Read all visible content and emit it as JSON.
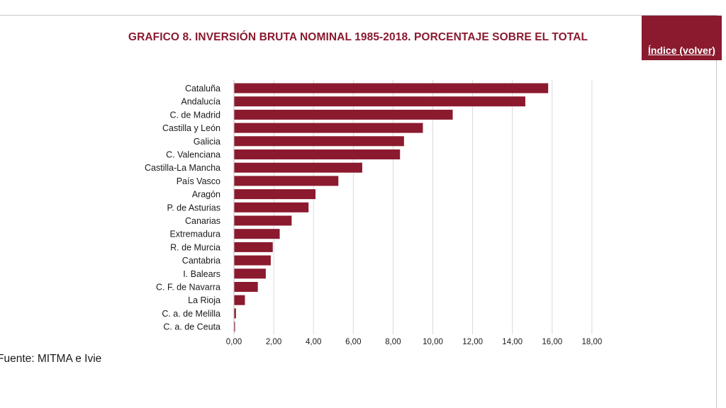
{
  "title": "GRAFICO 8. INVERSIÓN BRUTA NOMINAL 1985-2018. PORCENTAJE SOBRE EL TOTAL",
  "index_link": "Índice (volver)",
  "source": "Fuente: MITMA e Ivie",
  "colors": {
    "bar": "#8b1a2f",
    "accent": "#8b1a2f",
    "grid": "#d9d9d9"
  },
  "chart_data": {
    "type": "bar",
    "orientation": "horizontal",
    "categories": [
      "Cataluña",
      "Andalucía",
      "C. de Madrid",
      "Castilla y León",
      "Galicia",
      "C. Valenciana",
      "Castilla-La Mancha",
      "País Vasco",
      "Aragón",
      "P. de Asturias",
      "Canarias",
      "Extremadura",
      "R. de Murcia",
      "Cantabria",
      "I. Balears",
      "C. F. de Navarra",
      "La Rioja",
      "C. a. de Melilla",
      "C. a. de Ceuta"
    ],
    "values": [
      15.8,
      14.65,
      11.0,
      9.5,
      8.55,
      8.35,
      6.45,
      5.25,
      4.1,
      3.75,
      2.9,
      2.3,
      1.95,
      1.85,
      1.6,
      1.2,
      0.55,
      0.1,
      0.05
    ],
    "xlim": [
      0,
      18
    ],
    "xticks": [
      "0,00",
      "2,00",
      "4,00",
      "6,00",
      "8,00",
      "10,00",
      "12,00",
      "14,00",
      "16,00",
      "18,00"
    ],
    "grid": "vertical",
    "legend": "none",
    "xlabel": "",
    "ylabel": ""
  }
}
